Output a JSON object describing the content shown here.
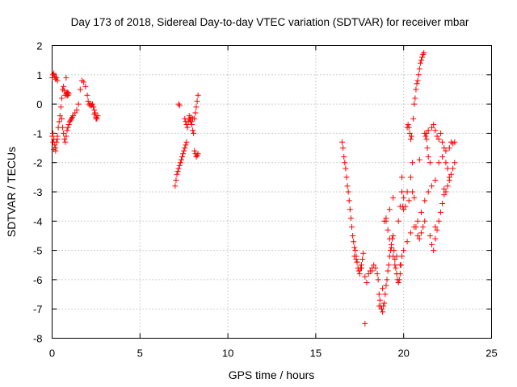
{
  "chart_data": {
    "type": "scatter",
    "title": "Day 173 of 2018, Sidereal Day-to-day VTEC variation (SDTVAR) for receiver mbar",
    "xlabel": "GPS time / hours",
    "ylabel": "SDTVAR / TECUs",
    "xlim": [
      0,
      25
    ],
    "ylim": [
      -8,
      2
    ],
    "xticks": [
      0,
      5,
      10,
      15,
      20,
      25
    ],
    "yticks": [
      2,
      1,
      0,
      -1,
      -2,
      -3,
      -4,
      -5,
      -6,
      -7,
      -8
    ],
    "xtick_labels": [
      "0",
      "5",
      "10",
      "15",
      "20",
      "25"
    ],
    "ytick_labels": [
      "2",
      "1",
      "0",
      "-1",
      "-2",
      "-3",
      "-4",
      "-5",
      "-6",
      "-7",
      "-8"
    ],
    "grid": true,
    "marker": "+",
    "marker_color": "#ff0000",
    "series": [
      {
        "name": "mbar",
        "x": [
          0.0,
          0.05,
          0.1,
          0.15,
          0.2,
          0.25,
          0.3,
          0.05,
          0.1,
          0.15,
          0.2,
          0.25,
          0.3,
          0.35,
          0.4,
          0.45,
          0.5,
          0.55,
          0.6,
          0.65,
          0.7,
          0.75,
          0.8,
          0.85,
          0.9,
          0.55,
          0.6,
          0.65,
          0.7,
          0.75,
          0.8,
          0.85,
          0.9,
          0.95,
          1.0,
          1.05,
          1.1,
          1.15,
          1.2,
          1.3,
          1.4,
          1.5,
          1.6,
          1.7,
          1.8,
          1.9,
          2.0,
          2.05,
          2.1,
          2.15,
          2.2,
          2.25,
          2.3,
          2.35,
          2.4,
          2.45,
          2.5,
          2.55,
          2.6,
          2.4,
          2.5,
          0.0,
          0.05,
          0.1,
          0.2,
          0.3,
          0.8,
          0.85,
          0.9,
          0.95,
          7.0,
          7.05,
          7.1,
          7.15,
          7.2,
          7.25,
          7.3,
          7.35,
          7.4,
          7.45,
          7.5,
          7.55,
          7.6,
          7.65,
          7.55,
          7.6,
          7.65,
          7.7,
          7.75,
          7.8,
          7.85,
          7.9,
          7.95,
          8.0,
          8.05,
          8.1,
          8.15,
          8.2,
          8.25,
          8.3,
          8.1,
          8.15,
          8.2,
          8.25,
          8.3,
          7.2,
          7.25,
          7.8,
          7.9,
          8.0,
          16.5,
          16.55,
          16.6,
          16.65,
          16.7,
          16.75,
          16.8,
          16.85,
          16.9,
          16.95,
          17.0,
          17.05,
          17.1,
          17.15,
          17.2,
          17.25,
          17.3,
          17.35,
          17.4,
          17.45,
          17.5,
          17.55,
          17.6,
          17.65,
          17.7,
          17.2,
          17.3,
          17.35,
          17.6,
          17.8,
          17.9,
          18.0,
          18.1,
          18.2,
          18.3,
          18.4,
          18.5,
          18.55,
          18.6,
          18.65,
          18.7,
          18.75,
          18.8,
          18.85,
          18.9,
          18.95,
          19.0,
          19.05,
          19.1,
          19.15,
          19.2,
          19.25,
          19.3,
          19.35,
          19.4,
          19.45,
          19.5,
          19.55,
          19.6,
          19.65,
          19.7,
          19.75,
          19.8,
          19.85,
          19.9,
          19.95,
          20.0,
          19.0,
          19.1,
          19.2,
          19.3,
          19.4,
          19.5,
          19.6,
          19.7,
          19.8,
          19.9,
          20.0,
          20.1,
          20.2,
          20.3,
          20.4,
          20.5,
          20.6,
          20.7,
          20.8,
          20.9,
          21.0,
          21.1,
          21.2,
          21.3,
          21.4,
          20.2,
          20.25,
          20.3,
          20.35,
          20.4,
          20.45,
          20.5,
          20.55,
          20.6,
          20.65,
          20.7,
          20.75,
          20.8,
          20.85,
          20.9,
          20.95,
          21.0,
          21.05,
          21.1,
          21.15,
          21.2,
          21.25,
          21.3,
          21.35,
          21.4,
          21.5,
          21.6,
          21.7,
          21.8,
          21.9,
          22.0,
          22.1,
          22.2,
          22.3,
          22.4,
          22.5,
          22.6,
          22.7,
          22.8,
          22.9,
          21.5,
          21.6,
          21.7,
          21.8,
          21.9,
          22.0,
          22.1,
          22.2,
          22.3,
          22.4,
          22.5,
          22.6,
          22.7,
          22.8,
          22.9,
          18.9,
          19.0,
          19.2,
          19.4,
          19.6,
          19.8,
          20.0,
          20.2,
          20.4,
          20.6,
          20.8,
          21.0,
          21.2,
          21.4,
          21.6,
          21.8,
          22.0,
          22.2,
          22.4,
          22.6,
          18.2,
          18.8,
          19.9,
          20.9,
          21.8,
          22.3,
          17.8,
          18.6
        ],
        "y": [
          0.9,
          1.0,
          1.05,
          0.95,
          0.85,
          0.9,
          0.8,
          -1.0,
          -1.2,
          -1.4,
          -1.5,
          -1.3,
          -1.1,
          -0.8,
          -0.6,
          -0.4,
          -0.1,
          0.2,
          0.5,
          0.6,
          0.45,
          0.3,
          0.35,
          0.4,
          0.3,
          -0.5,
          -0.8,
          -1.0,
          -1.2,
          -1.3,
          -1.1,
          -0.9,
          -0.8,
          -0.7,
          -0.6,
          -0.55,
          -0.5,
          -0.45,
          -0.4,
          -0.3,
          -0.2,
          0.0,
          0.5,
          0.8,
          0.75,
          0.6,
          0.3,
          0.1,
          0.0,
          -0.05,
          0.0,
          -0.05,
          0.0,
          -0.1,
          -0.2,
          -0.3,
          -0.45,
          -0.5,
          -0.4,
          -0.35,
          -0.5,
          -1.1,
          -1.3,
          -1.55,
          -1.6,
          -1.2,
          0.9,
          0.3,
          0.4,
          0.35,
          -2.8,
          -2.6,
          -2.4,
          -2.3,
          -2.2,
          -2.1,
          -2.0,
          -1.9,
          -1.8,
          -1.7,
          -1.6,
          -1.5,
          -1.4,
          -1.3,
          -0.5,
          -0.6,
          -0.7,
          -0.8,
          -0.6,
          -0.5,
          -0.55,
          -0.6,
          -0.7,
          -0.9,
          -1.0,
          -0.5,
          -0.3,
          -0.1,
          0.1,
          0.3,
          -1.6,
          -1.7,
          -1.8,
          -1.75,
          -1.7,
          0.0,
          -0.05,
          -0.4,
          -0.45,
          -0.5,
          -1.3,
          -1.5,
          -1.8,
          -2.0,
          -2.2,
          -2.5,
          -2.8,
          -3.0,
          -3.3,
          -3.6,
          -3.9,
          -4.2,
          -4.5,
          -4.7,
          -4.9,
          -5.0,
          -5.2,
          -5.4,
          -5.6,
          -5.7,
          -5.8,
          -5.6,
          -5.5,
          -5.3,
          -5.1,
          -5.2,
          -5.3,
          -5.4,
          -5.6,
          -5.9,
          -6.1,
          -5.8,
          -5.7,
          -5.6,
          -5.5,
          -5.6,
          -5.8,
          -6.0,
          -6.5,
          -6.7,
          -6.9,
          -7.0,
          -7.1,
          -6.9,
          -6.8,
          -6.5,
          -6.2,
          -6.0,
          -5.7,
          -5.5,
          -5.2,
          -5.0,
          -4.8,
          -4.6,
          -4.5,
          -5.0,
          -5.3,
          -5.6,
          -5.8,
          -6.0,
          -6.1,
          -6.0,
          -5.8,
          -5.5,
          -5.2,
          -3.5,
          -3.6,
          -4.0,
          -4.3,
          -4.6,
          -4.9,
          -5.2,
          -5.5,
          -5.8,
          -4.0,
          -3.5,
          -3.0,
          -3.2,
          -3.5,
          -3.0,
          -3.3,
          -2.5,
          -3.0,
          -3.2,
          -4.2,
          -4.5,
          -4.6,
          -4.4,
          -4.2,
          -4.0,
          -1.0,
          -0.9,
          -0.8,
          -0.7,
          -0.8,
          -1.0,
          -1.2,
          -1.1,
          -2.0,
          -0.5,
          0.0,
          0.2,
          0.5,
          0.7,
          0.8,
          1.0,
          1.2,
          1.4,
          1.5,
          1.6,
          1.7,
          1.75,
          -1.0,
          -1.1,
          -1.2,
          -1.5,
          -1.8,
          -2.0,
          -0.8,
          -0.7,
          -0.9,
          -1.1,
          -1.2,
          -1.0,
          -1.3,
          -1.5,
          -2.0,
          -2.2,
          -2.5,
          -1.3,
          -1.35,
          -1.3,
          -4.5,
          -4.8,
          -5.0,
          -4.6,
          -4.3,
          -4.0,
          -3.7,
          -3.4,
          -3.1,
          -3.0,
          -2.8,
          -2.6,
          -2.4,
          -2.2,
          -2.0,
          -4.0,
          -3.9,
          -3.6,
          -3.2,
          -5.2,
          -5.5,
          -5.0,
          -4.7,
          -4.4,
          -4.2,
          -4.0,
          -3.7,
          -3.3,
          -3.0,
          -2.8,
          -2.6,
          -2.0,
          -1.8,
          -1.6,
          -1.5,
          -5.7,
          -6.3,
          -2.5,
          -1.9,
          -4.2,
          -2.9,
          -7.5,
          -6.9
        ]
      }
    ]
  }
}
